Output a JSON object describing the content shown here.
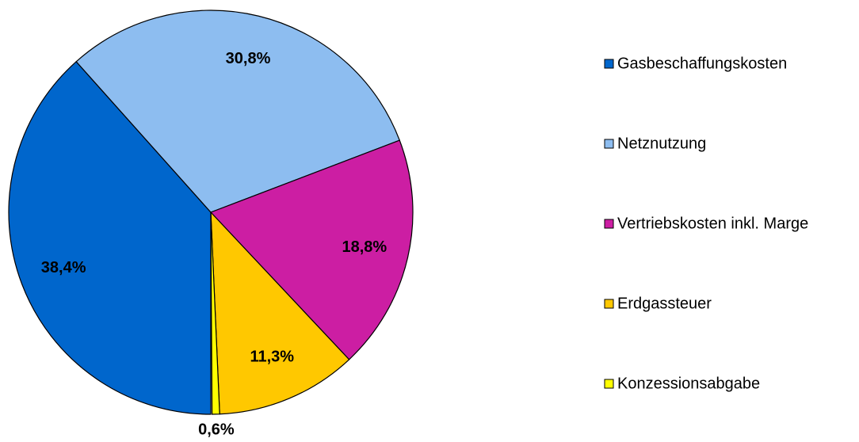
{
  "chart_data": {
    "type": "pie",
    "categories": [
      "Gasbeschaffungskosten",
      "Netznutzung",
      "Vertriebskosten inkl. Marge",
      "Erdgassteuer",
      "Konzessionsabgabe"
    ],
    "values": [
      38.4,
      30.8,
      18.8,
      11.3,
      0.6
    ],
    "value_labels": [
      "38,4%",
      "30,8%",
      "18,8%",
      "11,3%",
      "0,6%"
    ],
    "colors": [
      "#0066cc",
      "#8dbdf0",
      "#cc1ea3",
      "#ffc800",
      "#ffff00"
    ],
    "legend": "right"
  }
}
